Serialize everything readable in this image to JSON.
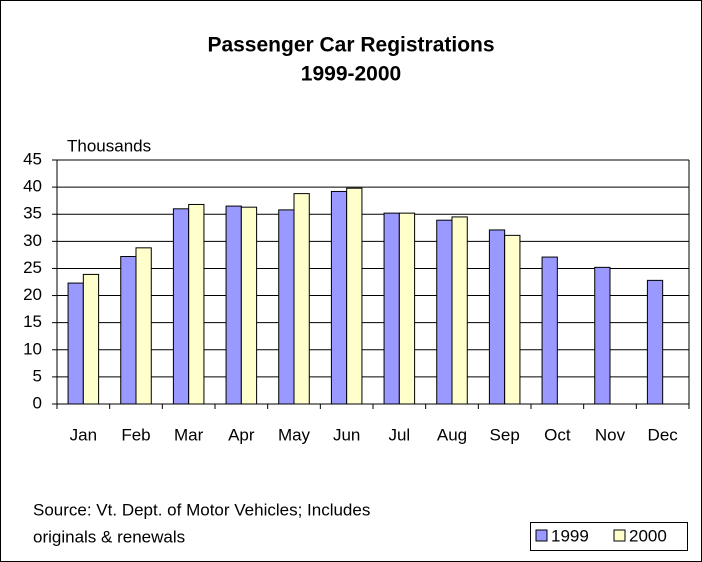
{
  "chart_data": {
    "type": "bar",
    "title": "Passenger Car Registrations",
    "subtitle": "1999-2000",
    "y_label": "Thousands",
    "categories": [
      "Jan",
      "Feb",
      "Mar",
      "Apr",
      "May",
      "Jun",
      "Jul",
      "Aug",
      "Sep",
      "Oct",
      "Nov",
      "Dec"
    ],
    "series": [
      {
        "name": "1999",
        "color": "#9999ff",
        "values": [
          22.3,
          27.2,
          36.0,
          36.5,
          35.8,
          39.2,
          35.2,
          33.9,
          32.1,
          27.1,
          25.2,
          22.8
        ]
      },
      {
        "name": "2000",
        "color": "#ffffcc",
        "values": [
          23.9,
          28.8,
          36.8,
          36.3,
          38.8,
          39.8,
          35.2,
          34.5,
          31.1,
          null,
          null,
          null
        ]
      }
    ],
    "ylim": [
      0,
      45
    ],
    "yticks": [
      0,
      5,
      10,
      15,
      20,
      25,
      30,
      35,
      40,
      45
    ],
    "grid": true,
    "source": [
      "Source: Vt. Dept. of Motor Vehicles; Includes",
      "originals & renewals"
    ],
    "legend": "bottom-right"
  }
}
